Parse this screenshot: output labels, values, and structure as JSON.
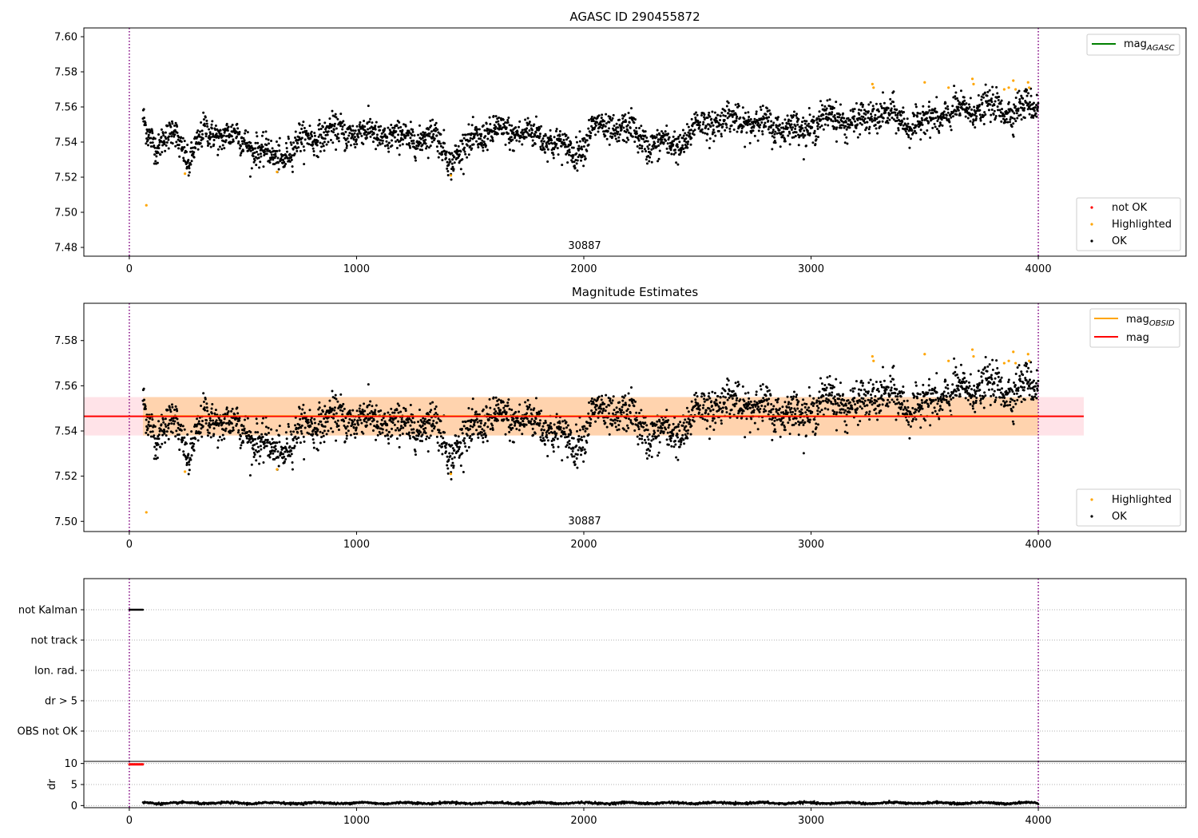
{
  "chart_data": [
    {
      "type": "scatter",
      "title": "AGASC ID 290455872",
      "xlim": [
        -200,
        4650
      ],
      "ylim": [
        7.475,
        7.605
      ],
      "x_ticks": [
        0,
        1000,
        2000,
        3000,
        4000
      ],
      "y_ticks": [
        7.48,
        7.5,
        7.52,
        7.54,
        7.56,
        7.58,
        7.6
      ],
      "y_tick_labels": [
        "7.48",
        "7.50",
        "7.52",
        "7.54",
        "7.56",
        "7.58",
        "7.60"
      ],
      "annotation": "30887",
      "obs_boundaries": [
        0,
        4000
      ],
      "legend_lines": [
        {
          "label": "mag",
          "subscript": "AGASC",
          "color": "#008000"
        }
      ],
      "legend_points": [
        {
          "label": "not OK",
          "color": "#ff0000"
        },
        {
          "label": "Highlighted",
          "color": "#ffa500"
        },
        {
          "label": "OK",
          "color": "#000000"
        }
      ],
      "trend": [
        {
          "x": 60,
          "y": 7.552
        },
        {
          "x": 120,
          "y": 7.538
        },
        {
          "x": 200,
          "y": 7.545
        },
        {
          "x": 260,
          "y": 7.53
        },
        {
          "x": 330,
          "y": 7.545
        },
        {
          "x": 450,
          "y": 7.544
        },
        {
          "x": 550,
          "y": 7.537
        },
        {
          "x": 650,
          "y": 7.53
        },
        {
          "x": 750,
          "y": 7.54
        },
        {
          "x": 850,
          "y": 7.545
        },
        {
          "x": 1000,
          "y": 7.546
        },
        {
          "x": 1200,
          "y": 7.542
        },
        {
          "x": 1350,
          "y": 7.543
        },
        {
          "x": 1420,
          "y": 7.53
        },
        {
          "x": 1550,
          "y": 7.545
        },
        {
          "x": 1700,
          "y": 7.546
        },
        {
          "x": 1850,
          "y": 7.542
        },
        {
          "x": 1950,
          "y": 7.533
        },
        {
          "x": 2050,
          "y": 7.548
        },
        {
          "x": 2200,
          "y": 7.547
        },
        {
          "x": 2300,
          "y": 7.538
        },
        {
          "x": 2450,
          "y": 7.54
        },
        {
          "x": 2500,
          "y": 7.55
        },
        {
          "x": 2650,
          "y": 7.553
        },
        {
          "x": 2800,
          "y": 7.55
        },
        {
          "x": 2950,
          "y": 7.547
        },
        {
          "x": 3100,
          "y": 7.555
        },
        {
          "x": 3200,
          "y": 7.55
        },
        {
          "x": 3300,
          "y": 7.557
        },
        {
          "x": 3450,
          "y": 7.55
        },
        {
          "x": 3600,
          "y": 7.556
        },
        {
          "x": 3750,
          "y": 7.56
        },
        {
          "x": 3900,
          "y": 7.558
        },
        {
          "x": 4000,
          "y": 7.562
        }
      ],
      "highlighted_points": [
        {
          "x": 75,
          "y": 7.504
        },
        {
          "x": 245,
          "y": 7.522
        },
        {
          "x": 650,
          "y": 7.523
        },
        {
          "x": 1415,
          "y": 7.521
        },
        {
          "x": 3270,
          "y": 7.573
        },
        {
          "x": 3275,
          "y": 7.571
        },
        {
          "x": 3500,
          "y": 7.574
        },
        {
          "x": 3605,
          "y": 7.571
        },
        {
          "x": 3710,
          "y": 7.576
        },
        {
          "x": 3715,
          "y": 7.573
        },
        {
          "x": 3850,
          "y": 7.57
        },
        {
          "x": 3870,
          "y": 7.571
        },
        {
          "x": 3890,
          "y": 7.575
        },
        {
          "x": 3900,
          "y": 7.57
        },
        {
          "x": 3955,
          "y": 7.574
        },
        {
          "x": 3960,
          "y": 7.571
        }
      ]
    },
    {
      "type": "scatter",
      "title": "Magnitude Estimates",
      "xlim": [
        -200,
        4650
      ],
      "ylim": [
        7.4955,
        7.5965
      ],
      "x_ticks": [
        0,
        1000,
        2000,
        3000,
        4000
      ],
      "y_ticks": [
        7.5,
        7.52,
        7.54,
        7.56,
        7.58
      ],
      "y_tick_labels": [
        "7.50",
        "7.52",
        "7.54",
        "7.56",
        "7.58"
      ],
      "annotation": "30887",
      "obs_boundaries": [
        0,
        4000
      ],
      "mag": 7.5465,
      "mag_band": [
        7.538,
        7.555
      ],
      "mag_band_xrange": [
        -200,
        4200
      ],
      "obsid_band": [
        7.538,
        7.555
      ],
      "obsid_band_xrange": [
        60,
        4000
      ],
      "legend_lines": [
        {
          "label": "mag",
          "subscript": "OBSID",
          "color": "#ffa500"
        },
        {
          "label": "mag",
          "subscript": "",
          "color": "#ff0000"
        }
      ],
      "legend_points": [
        {
          "label": "Highlighted",
          "color": "#ffa500"
        },
        {
          "label": "OK",
          "color": "#000000"
        }
      ]
    },
    {
      "type": "scatter",
      "xlim": [
        -200,
        4650
      ],
      "flag_labels": [
        "not Kalman",
        "not track",
        "Ion. rad.",
        "dr > 5",
        "OBS not OK"
      ],
      "flag_points": [
        {
          "flag": "not Kalman",
          "x_range": [
            0,
            60
          ]
        }
      ],
      "obs_boundaries": [
        0,
        4000
      ]
    },
    {
      "type": "scatter",
      "ylabel": "dr",
      "xlim": [
        -200,
        4650
      ],
      "ylim": [
        -0.5,
        10.5
      ],
      "x_ticks": [
        0,
        1000,
        2000,
        3000,
        4000
      ],
      "y_ticks": [
        0,
        5,
        10
      ],
      "y_tick_labels": [
        "0",
        "5",
        "10"
      ],
      "dr_level": 0.6,
      "dr_outliers": {
        "x_range": [
          0,
          60
        ],
        "y": 9.8
      },
      "obs_boundaries": [
        0,
        4000
      ]
    }
  ]
}
